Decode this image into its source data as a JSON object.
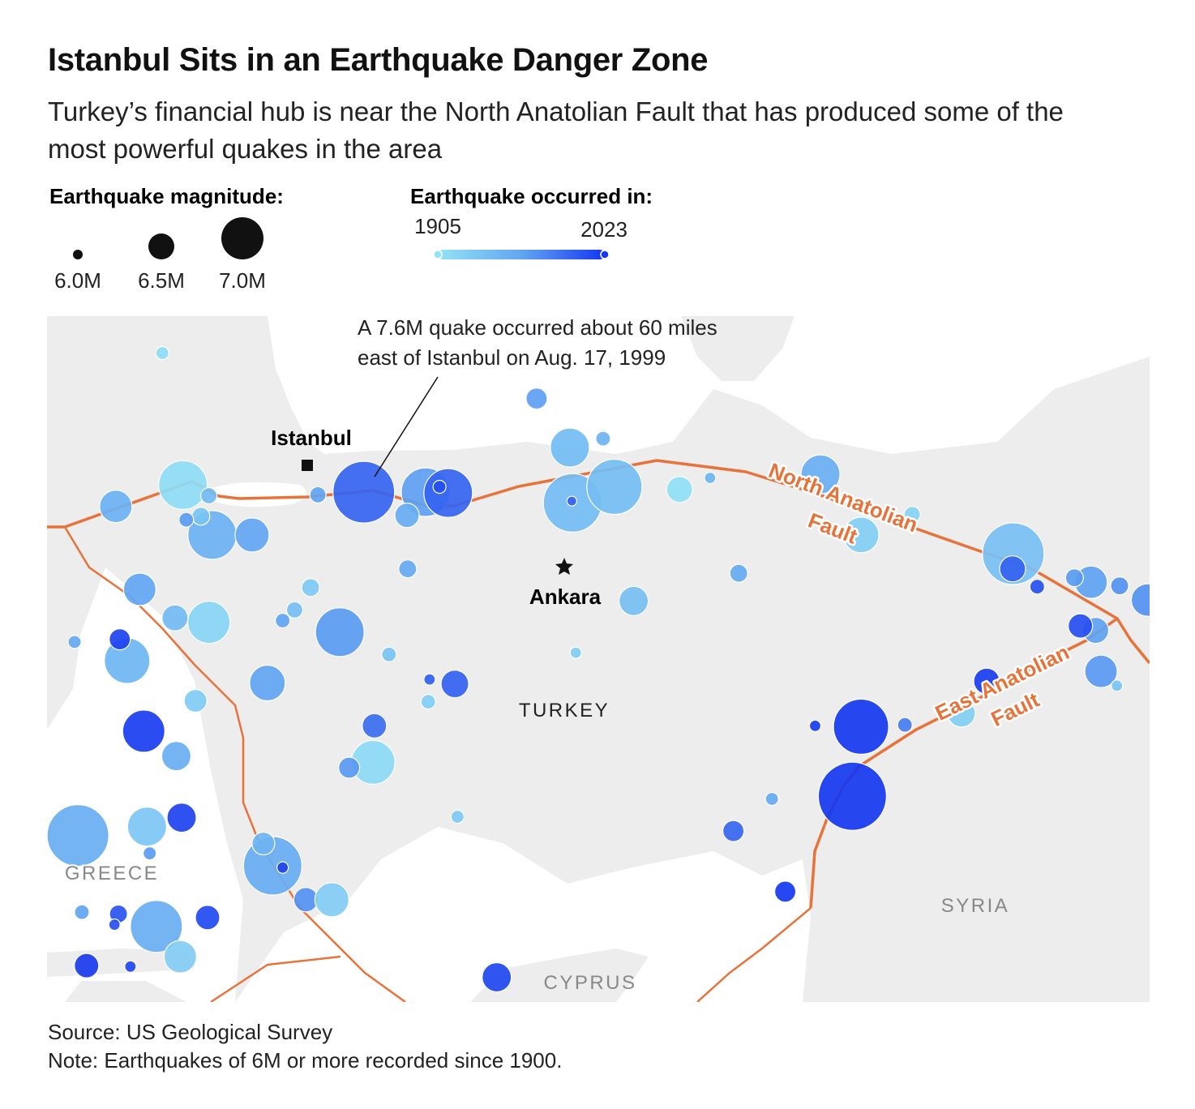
{
  "header": {
    "title": "Istanbul Sits in an Earthquake Danger Zone",
    "subtitle": "Turkey’s financial hub is near the North Anatolian Fault that has produced some of the most powerful quakes in the area"
  },
  "legend": {
    "magnitude": {
      "title": "Earthquake magnitude:",
      "ticks": [
        {
          "value": 6.0,
          "label": "6.0M"
        },
        {
          "value": 6.5,
          "label": "6.5M"
        },
        {
          "value": 7.0,
          "label": "7.0M"
        }
      ]
    },
    "year": {
      "title": "Earthquake occurred in:",
      "range": [
        1905,
        2023
      ],
      "colors": [
        "#93e3f5",
        "#62a6f2",
        "#1537ef"
      ]
    }
  },
  "map": {
    "annotation": [
      "A 7.6M quake occurred about 60 miles",
      "east of Istanbul on Aug. 17, 1999"
    ],
    "cities": [
      "Istanbul",
      "Ankara"
    ],
    "countries": [
      "TURKEY",
      "GREECE",
      "SYRIA",
      "CYPRUS"
    ],
    "faults": [
      [
        "North Anatolian",
        "Fault"
      ],
      [
        "East Anatolian",
        "Fault"
      ]
    ],
    "quakes": [
      {
        "lon": 26.8,
        "lat": 42.26,
        "mag": 6.1,
        "year": 1912
      },
      {
        "lon": 32.43,
        "lat": 41.75,
        "mag": 6.35,
        "year": 1968
      },
      {
        "lon": 32.93,
        "lat": 41.2,
        "mag": 6.9,
        "year": 1943
      },
      {
        "lon": 33.43,
        "lat": 41.3,
        "mag": 6.15,
        "year": 1950
      },
      {
        "lon": 32.97,
        "lat": 40.58,
        "mag": 7.5,
        "year": 1943
      },
      {
        "lon": 33.6,
        "lat": 40.76,
        "mag": 7.4,
        "year": 1942
      },
      {
        "lon": 32.96,
        "lat": 40.6,
        "mag": 6.0,
        "year": 2000
      },
      {
        "lon": 34.58,
        "lat": 40.73,
        "mag": 6.5,
        "year": 1910
      },
      {
        "lon": 35.04,
        "lat": 40.86,
        "mag": 6.05,
        "year": 1950
      },
      {
        "lon": 36.7,
        "lat": 40.9,
        "mag": 6.9,
        "year": 1955
      },
      {
        "lon": 37.31,
        "lat": 40.22,
        "mag": 6.8,
        "year": 1925
      },
      {
        "lon": 38.08,
        "lat": 40.45,
        "mag": 6.2,
        "year": 1920
      },
      {
        "lon": 39.6,
        "lat": 40.01,
        "mag": 7.6,
        "year": 1939
      },
      {
        "lon": 39.59,
        "lat": 39.84,
        "mag": 6.5,
        "year": 2000
      },
      {
        "lon": 39.96,
        "lat": 39.64,
        "mag": 6.15,
        "year": 2010
      },
      {
        "lon": 40.77,
        "lat": 39.69,
        "mag": 6.7,
        "year": 1966
      },
      {
        "lon": 40.52,
        "lat": 39.74,
        "mag": 6.25,
        "year": 1970
      },
      {
        "lon": 41.2,
        "lat": 39.65,
        "mag": 6.25,
        "year": 1975
      },
      {
        "lon": 41.62,
        "lat": 39.49,
        "mag": 6.7,
        "year": 1975
      },
      {
        "lon": 40.84,
        "lat": 39.15,
        "mag": 6.5,
        "year": 1966
      },
      {
        "lon": 40.61,
        "lat": 39.2,
        "mag": 6.45,
        "year": 2011
      },
      {
        "lon": 40.92,
        "lat": 38.69,
        "mag": 6.7,
        "year": 1971
      },
      {
        "lon": 41.16,
        "lat": 38.53,
        "mag": 6.05,
        "year": 1935
      },
      {
        "lon": 39.2,
        "lat": 38.58,
        "mag": 6.5,
        "year": 2020
      },
      {
        "lon": 38.82,
        "lat": 38.22,
        "mag": 6.55,
        "year": 1925
      },
      {
        "lon": 37.31,
        "lat": 38.07,
        "mag": 7.4,
        "year": 2023
      },
      {
        "lon": 37.18,
        "lat": 37.29,
        "mag": 7.8,
        "year": 2023
      },
      {
        "lon": 36.62,
        "lat": 38.08,
        "mag": 6.05,
        "year": 2020
      },
      {
        "lon": 37.97,
        "lat": 38.09,
        "mag": 6.15,
        "year": 1986
      },
      {
        "lon": 35.97,
        "lat": 37.26,
        "mag": 6.1,
        "year": 1960
      },
      {
        "lon": 35.39,
        "lat": 36.9,
        "mag": 6.35,
        "year": 1998
      },
      {
        "lon": 36.17,
        "lat": 36.22,
        "mag": 6.35,
        "year": 2023
      },
      {
        "lon": 35.47,
        "lat": 39.79,
        "mag": 6.25,
        "year": 1960
      },
      {
        "lon": 33.89,
        "lat": 39.48,
        "mag": 6.6,
        "year": 1940
      },
      {
        "lon": 33.02,
        "lat": 38.9,
        "mag": 6.05,
        "year": 1925
      },
      {
        "lon": 31.83,
        "lat": 35.26,
        "mag": 6.6,
        "year": 2015
      },
      {
        "lon": 31.24,
        "lat": 37.06,
        "mag": 6.1,
        "year": 1930
      },
      {
        "lon": 29.83,
        "lat": 40.7,
        "mag": 7.6,
        "year": 1999
      },
      {
        "lon": 29.14,
        "lat": 40.67,
        "mag": 6.2,
        "year": 1965
      },
      {
        "lon": 30.76,
        "lat": 40.7,
        "mag": 7.2,
        "year": 1967
      },
      {
        "lon": 31.1,
        "lat": 40.69,
        "mag": 7.2,
        "year": 1999
      },
      {
        "lon": 30.97,
        "lat": 40.76,
        "mag": 6.1,
        "year": 2010
      },
      {
        "lon": 30.48,
        "lat": 40.44,
        "mag": 6.45,
        "year": 1957
      },
      {
        "lon": 27.11,
        "lat": 40.78,
        "mag": 7.2,
        "year": 1912
      },
      {
        "lon": 26.1,
        "lat": 40.54,
        "mag": 6.7,
        "year": 1953
      },
      {
        "lon": 27.55,
        "lat": 40.22,
        "mag": 7.2,
        "year": 1953
      },
      {
        "lon": 28.15,
        "lat": 40.22,
        "mag": 6.75,
        "year": 1964
      },
      {
        "lon": 27.38,
        "lat": 40.43,
        "mag": 6.25,
        "year": 1935
      },
      {
        "lon": 27.5,
        "lat": 40.66,
        "mag": 6.2,
        "year": 1944
      },
      {
        "lon": 27.16,
        "lat": 40.39,
        "mag": 6.15,
        "year": 1970
      },
      {
        "lon": 30.49,
        "lat": 39.84,
        "mag": 6.25,
        "year": 1960
      },
      {
        "lon": 29.03,
        "lat": 39.63,
        "mag": 6.25,
        "year": 1930
      },
      {
        "lon": 28.79,
        "lat": 39.38,
        "mag": 6.2,
        "year": 1940
      },
      {
        "lon": 28.61,
        "lat": 39.26,
        "mag": 6.15,
        "year": 1965
      },
      {
        "lon": 29.47,
        "lat": 39.13,
        "mag": 7.2,
        "year": 1970
      },
      {
        "lon": 30.21,
        "lat": 38.88,
        "mag": 6.15,
        "year": 1935
      },
      {
        "lon": 28.38,
        "lat": 38.56,
        "mag": 6.8,
        "year": 1965
      },
      {
        "lon": 31.2,
        "lat": 38.55,
        "mag": 6.55,
        "year": 2000
      },
      {
        "lon": 30.82,
        "lat": 38.6,
        "mag": 6.05,
        "year": 2002
      },
      {
        "lon": 30.8,
        "lat": 38.35,
        "mag": 6.15,
        "year": 1925
      },
      {
        "lon": 29.99,
        "lat": 38.08,
        "mag": 6.45,
        "year": 1995
      },
      {
        "lon": 29.97,
        "lat": 37.67,
        "mag": 7.05,
        "year": 1914
      },
      {
        "lon": 29.61,
        "lat": 37.61,
        "mag": 6.35,
        "year": 1971
      },
      {
        "lon": 26.46,
        "lat": 39.61,
        "mag": 6.7,
        "year": 1964
      },
      {
        "lon": 26.99,
        "lat": 39.29,
        "mag": 6.5,
        "year": 1944
      },
      {
        "lon": 27.5,
        "lat": 39.24,
        "mag": 7.0,
        "year": 1919
      },
      {
        "lon": 26.27,
        "lat": 38.81,
        "mag": 7.1,
        "year": 1949
      },
      {
        "lon": 26.16,
        "lat": 39.05,
        "mag": 6.35,
        "year": 2017
      },
      {
        "lon": 25.48,
        "lat": 39.02,
        "mag": 6.1,
        "year": 1960
      },
      {
        "lon": 27.3,
        "lat": 38.36,
        "mag": 6.4,
        "year": 1928
      },
      {
        "lon": 26.52,
        "lat": 38.02,
        "mag": 7.0,
        "year": 2020
      },
      {
        "lon": 27.01,
        "lat": 37.74,
        "mag": 6.6,
        "year": 1956
      },
      {
        "lon": 25.53,
        "lat": 36.85,
        "mag": 7.6,
        "year": 1956
      },
      {
        "lon": 26.57,
        "lat": 36.95,
        "mag": 6.9,
        "year": 1933
      },
      {
        "lon": 27.09,
        "lat": 37.05,
        "mag": 6.6,
        "year": 2017
      },
      {
        "lon": 26.61,
        "lat": 36.65,
        "mag": 6.1,
        "year": 1970
      },
      {
        "lon": 28.46,
        "lat": 36.51,
        "mag": 7.5,
        "year": 1957
      },
      {
        "lon": 28.32,
        "lat": 36.76,
        "mag": 6.4,
        "year": 1950
      },
      {
        "lon": 28.61,
        "lat": 36.49,
        "mag": 6.05,
        "year": 2017
      },
      {
        "lon": 28.96,
        "lat": 36.13,
        "mag": 6.45,
        "year": 1975
      },
      {
        "lon": 29.35,
        "lat": 36.13,
        "mag": 6.75,
        "year": 1926
      },
      {
        "lon": 26.71,
        "lat": 35.83,
        "mag": 7.3,
        "year": 1956
      },
      {
        "lon": 27.07,
        "lat": 35.49,
        "mag": 6.7,
        "year": 1926
      },
      {
        "lon": 27.48,
        "lat": 35.93,
        "mag": 6.45,
        "year": 2013
      },
      {
        "lon": 26.14,
        "lat": 35.97,
        "mag": 6.25,
        "year": 2008
      },
      {
        "lon": 26.08,
        "lat": 35.85,
        "mag": 6.05,
        "year": 2010
      },
      {
        "lon": 25.59,
        "lat": 35.99,
        "mag": 6.15,
        "year": 1965
      },
      {
        "lon": 25.66,
        "lat": 35.39,
        "mag": 6.45,
        "year": 2021
      },
      {
        "lon": 26.32,
        "lat": 35.38,
        "mag": 6.05,
        "year": 2015
      }
    ]
  },
  "footer": {
    "source": "Source: US Geological Survey",
    "note": "Note: Earthquakes of 6M or more recorded since 1900."
  }
}
